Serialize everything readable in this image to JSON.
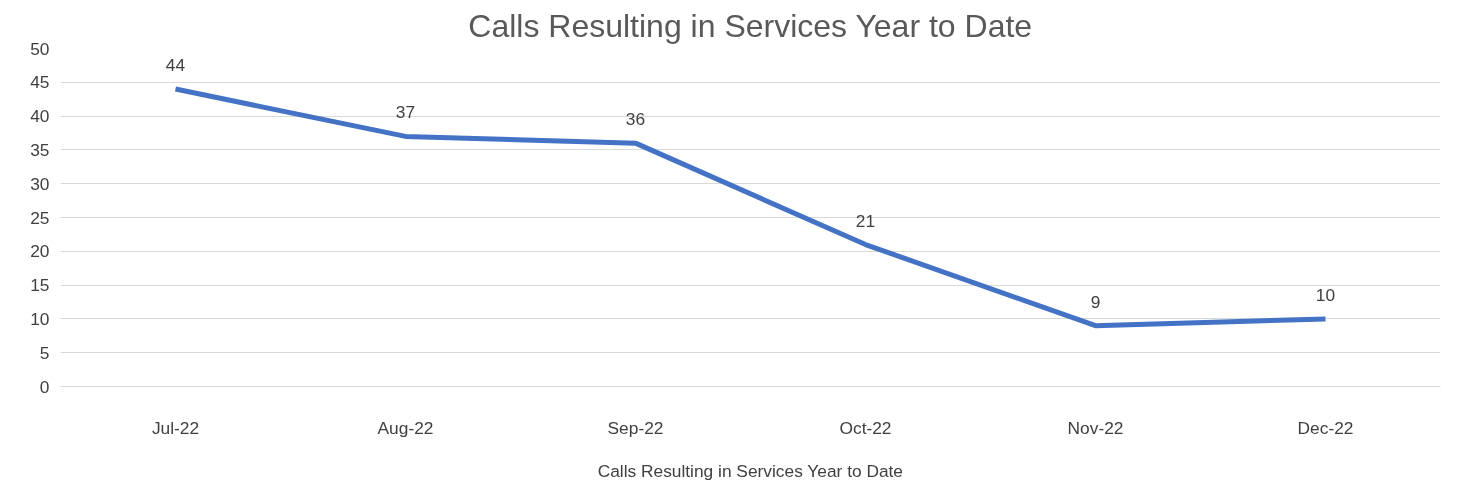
{
  "chart_data": {
    "type": "line",
    "title": "Calls Resulting in Services Year to Date",
    "xlabel": "Calls Resulting in Services Year to Date",
    "categories": [
      "Jul-22",
      "Aug-22",
      "Sep-22",
      "Oct-22",
      "Nov-22",
      "Dec-22"
    ],
    "series": [
      {
        "color": "#4472c4",
        "values": [
          44,
          37,
          36,
          21,
          9,
          10
        ]
      }
    ],
    "ylim": [
      0,
      50
    ],
    "yticks": [
      0,
      5,
      10,
      15,
      20,
      25,
      30,
      35,
      40,
      45,
      50
    ],
    "grid": "y",
    "data_labels": true,
    "marker": "none",
    "line_style": "solid"
  }
}
